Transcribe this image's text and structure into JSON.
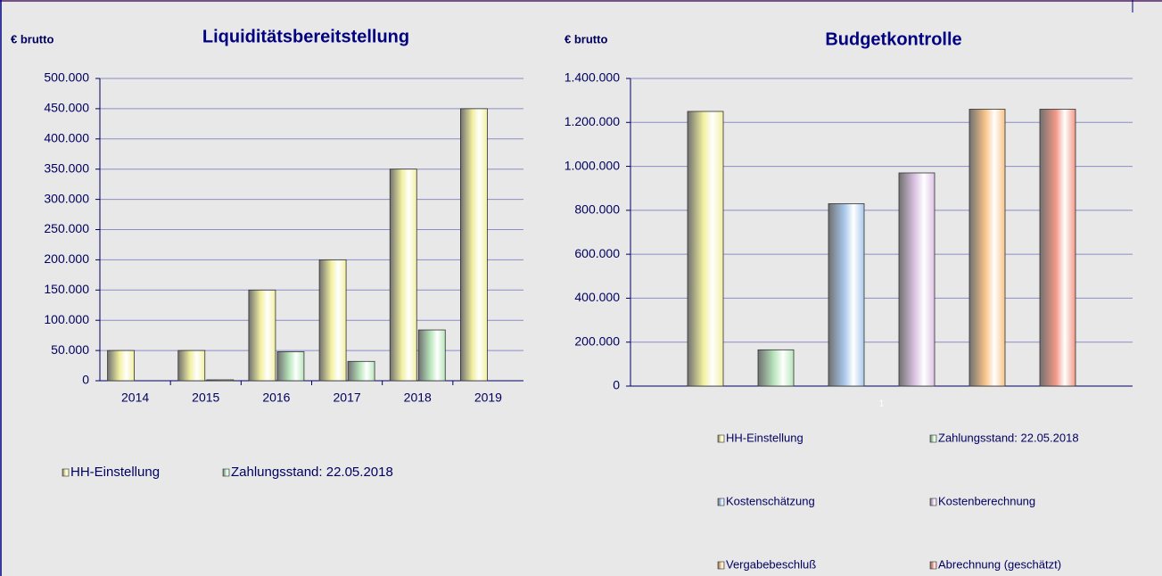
{
  "chart_data": [
    {
      "type": "bar",
      "title": "Liquiditätsbereitstellung",
      "y_label": "€ brutto",
      "categories": [
        "2014",
        "2015",
        "2016",
        "2017",
        "2018",
        "2019"
      ],
      "series": [
        {
          "name": "HH-Einstellung",
          "color": "#f2f0a0",
          "values": [
            50000,
            50000,
            150000,
            200000,
            350000,
            450000
          ]
        },
        {
          "name": "Zahlungsstand: 22.05.2018",
          "color": "#b8e6bc",
          "values": [
            0,
            1500,
            48000,
            32000,
            84000,
            0
          ]
        }
      ],
      "ylim": [
        0,
        500000
      ],
      "yticks": [
        0,
        {
          "value": 50000,
          "label": "50.000"
        },
        {
          "value": 100000,
          "label": "100.000"
        },
        {
          "value": 150000,
          "label": "150.000"
        },
        {
          "value": 200000,
          "label": "200.000"
        },
        {
          "value": 250000,
          "label": "250.000"
        },
        {
          "value": 300000,
          "label": "300.000"
        },
        {
          "value": 350000,
          "label": "350.000"
        },
        {
          "value": 400000,
          "label": "400.000"
        },
        {
          "value": 450000,
          "label": "450.000"
        },
        {
          "value": 500000,
          "label": "500.000"
        }
      ],
      "grid": true
    },
    {
      "type": "bar",
      "title": "Budgetkontrolle",
      "y_label": "€ brutto",
      "categories": [
        "1"
      ],
      "series": [
        {
          "name": "HH-Einstellung",
          "color": "#f2f0a0",
          "values": [
            1250000
          ]
        },
        {
          "name": "Zahlungsstand: 22.05.2018",
          "color": "#b8e6bc",
          "values": [
            165000
          ]
        },
        {
          "name": "Kostenschätzung",
          "color": "#a8c8ec",
          "values": [
            830000
          ]
        },
        {
          "name": "Kostenberechnung",
          "color": "#dcc4e4",
          "values": [
            970000
          ]
        },
        {
          "name": "Vergabebeschluß",
          "color": "#f8c488",
          "values": [
            1260000
          ]
        },
        {
          "name": "Abrechnung (geschätzt)",
          "color": "#f29886",
          "values": [
            1260000
          ]
        }
      ],
      "ylim": [
        0,
        1400000
      ],
      "yticks": [
        0,
        {
          "value": 200000,
          "label": "200.000"
        },
        {
          "value": 400000,
          "label": "400.000"
        },
        {
          "value": 600000,
          "label": "600.000"
        },
        {
          "value": 800000,
          "label": "800.000"
        },
        {
          "value": 1000000,
          "label": "1.000.000"
        },
        {
          "value": 1200000,
          "label": "1.200.000"
        },
        {
          "value": 1400000,
          "label": "1.400.000"
        }
      ],
      "grid": true
    }
  ]
}
